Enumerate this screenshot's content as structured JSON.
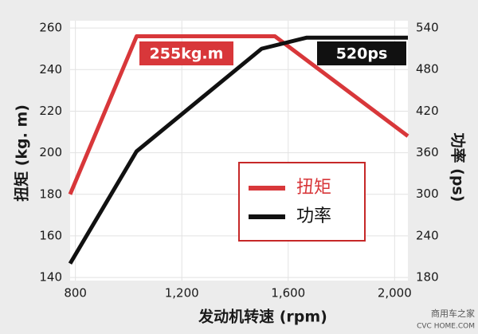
{
  "chart_data": {
    "type": "line",
    "x_label": "发动机转速 (rpm)",
    "y_label": "扭矩 (kg. m)",
    "y2_label": "功率 (ps)",
    "xlim": [
      780,
      2050
    ],
    "xticks": [
      800,
      {
        "value": 1200,
        "label": "1,200"
      },
      {
        "value": 1600,
        "label": "1,600"
      },
      {
        "value": 2000,
        "label": "2,000"
      }
    ],
    "ylim": [
      138.5,
      263.5
    ],
    "yticks": [
      140,
      160,
      180,
      200,
      220,
      240,
      260
    ],
    "y2lim": [
      175.4,
      550.4
    ],
    "y2ticks": [
      180,
      240,
      300,
      360,
      420,
      480,
      540
    ],
    "grid": true,
    "series": [
      {
        "name": "扭矩",
        "color": "#d8373a",
        "x": [
          780,
          1030,
          1550,
          2050
        ],
        "values": [
          180,
          256,
          256,
          208
        ]
      },
      {
        "name": "功率",
        "color": "#111111",
        "axis": "y2",
        "x": [
          780,
          1030,
          1500,
          1670,
          2050
        ],
        "values": [
          200,
          362,
          510,
          526,
          526
        ]
      }
    ],
    "annotations": [
      "255kg.m",
      "520ps"
    ],
    "watermark": [
      "商用车之家",
      "CVC HOME.COM"
    ]
  }
}
